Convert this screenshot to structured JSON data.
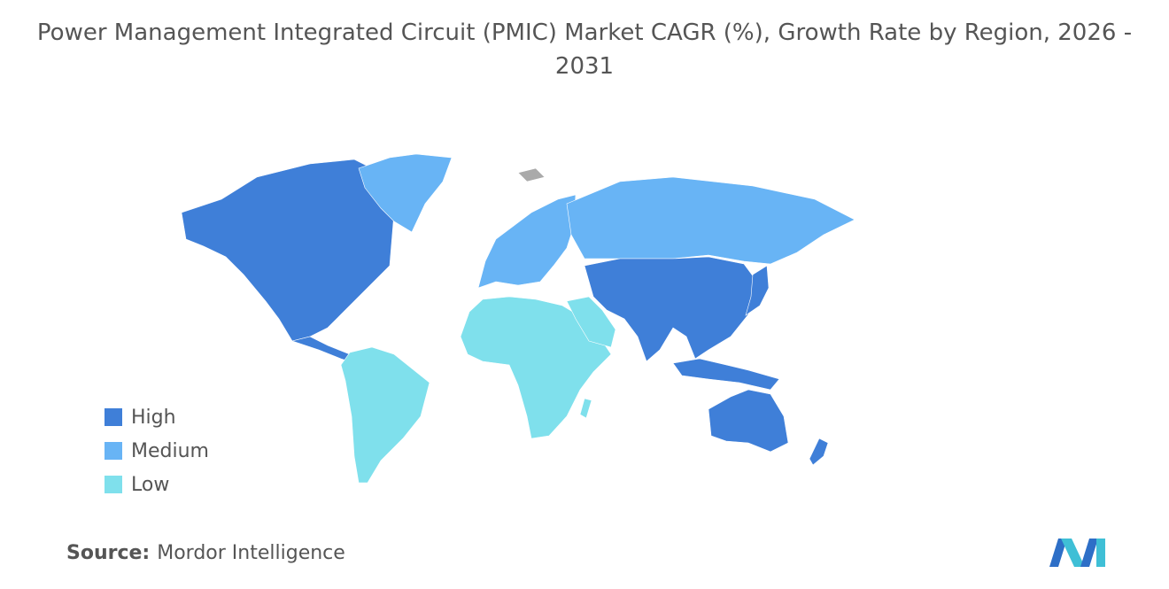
{
  "title": "Power Management Integrated Circuit (PMIC) Market CAGR (%), Growth Rate by Region, 2026 - 2031",
  "legend": [
    {
      "label": "High",
      "color": "#3f7fd8"
    },
    {
      "label": "Medium",
      "color": "#68b4f5"
    },
    {
      "label": "Low",
      "color": "#7fe0ec"
    }
  ],
  "source": {
    "label": "Source:",
    "text": "Mordor Intelligence"
  }
}
